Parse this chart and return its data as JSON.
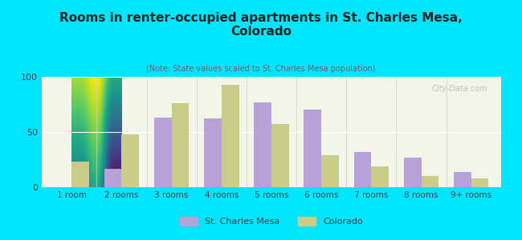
{
  "title": "Rooms in renter-occupied apartments in St. Charles Mesa,\nColorado",
  "subtitle": "(Note: State values scaled to St. Charles Mesa population)",
  "categories": [
    "1 room",
    "2 rooms",
    "3 rooms",
    "4 rooms",
    "5 rooms",
    "6 rooms",
    "7 rooms",
    "8 rooms",
    "9+ rooms"
  ],
  "st_charles_values": [
    0,
    17,
    63,
    62,
    77,
    70,
    32,
    27,
    14
  ],
  "colorado_values": [
    23,
    48,
    76,
    93,
    57,
    29,
    19,
    10,
    8
  ],
  "bar_color_stcharles": "#b8a0d8",
  "bar_color_colorado": "#c8cc88",
  "background_outer": "#00e5ff",
  "background_inner_top": "#f0f5e8",
  "background_inner_bottom": "#fffff0",
  "ylim": [
    0,
    100
  ],
  "yticks": [
    0,
    50,
    100
  ],
  "watermark": "City-Data.com",
  "legend_label_1": "St. Charles Mesa",
  "legend_label_2": "Colorado",
  "bar_width": 0.35
}
